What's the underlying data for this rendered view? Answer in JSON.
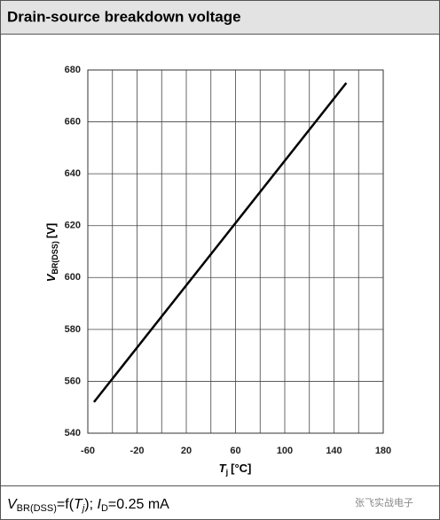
{
  "chart_data": {
    "type": "line",
    "title": "Drain-source breakdown voltage",
    "x": [
      -55,
      150
    ],
    "series": [
      {
        "color": "#000000",
        "values": [
          552,
          675
        ]
      }
    ],
    "xlim": [
      -60,
      180
    ],
    "xticks": [
      -60,
      -20,
      20,
      60,
      100,
      140,
      180
    ],
    "ylim": [
      540,
      680
    ],
    "yticks": [
      540,
      560,
      580,
      600,
      620,
      640,
      660,
      680
    ],
    "xgrid": [
      -60,
      -40,
      -20,
      0,
      20,
      40,
      60,
      80,
      100,
      120,
      140,
      160,
      180
    ],
    "grid": true,
    "y_label": {
      "symbol": "V",
      "subscript": "BR(DSS)",
      "unit": "[V]"
    },
    "x_label": {
      "symbol": "T",
      "subscript": "j",
      "unit": "[°C]"
    }
  },
  "footer": {
    "v": "V",
    "v_sub": "BR(DSS)",
    "eq": "=f(",
    "t": "T",
    "t_sub": "j",
    "sep": "); ",
    "i": "I",
    "i_sub": "D",
    "rest": "=0.25 mA"
  },
  "watermark": "张飞实战电子"
}
